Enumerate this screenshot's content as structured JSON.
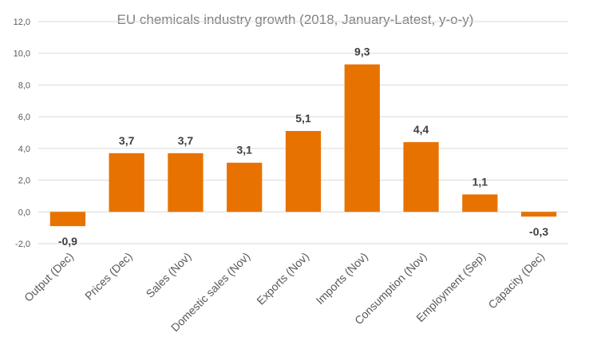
{
  "chart_data": {
    "type": "bar",
    "title": "EU chemicals industry growth (2018, January-Latest, y-o-y)",
    "xlabel": "",
    "ylabel": "",
    "ylim": [
      -2,
      12
    ],
    "ytick_step": 2,
    "ytick_labels": [
      "-2,0",
      "0,0",
      "2,0",
      "4,0",
      "6,0",
      "8,0",
      "10,0",
      "12,0"
    ],
    "grid": true,
    "bar_color": "#E87200",
    "categories": [
      "Output (Dec)",
      "Prices (Dec)",
      "Sales (Nov)",
      "Domestic sales (Nov)",
      "Exports (Nov)",
      "Imports (Nov)",
      "Consumption (Nov)",
      "Employment (Sep)",
      "Capacity (Dec)"
    ],
    "values": [
      -0.9,
      3.7,
      3.7,
      3.1,
      5.1,
      9.3,
      4.4,
      1.1,
      -0.3
    ],
    "value_labels": [
      "-0,9",
      "3,7",
      "3,7",
      "3,1",
      "5,1",
      "9,3",
      "4,4",
      "1,1",
      "-0,3"
    ]
  }
}
